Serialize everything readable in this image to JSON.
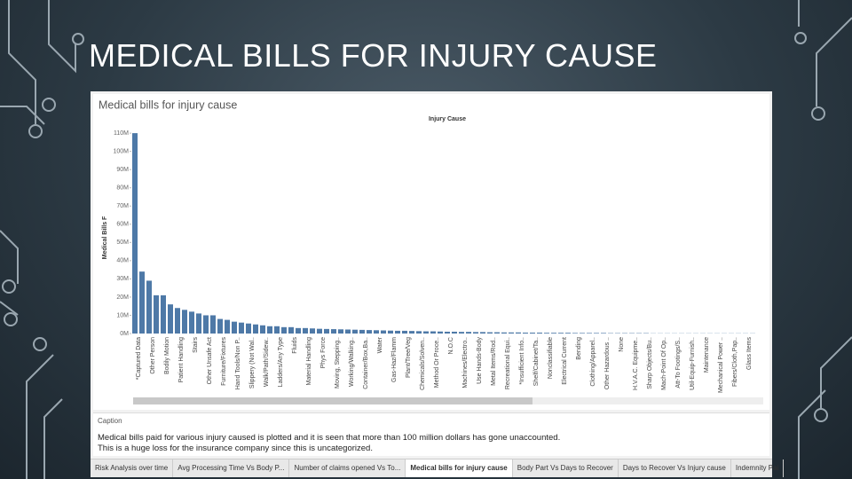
{
  "slide_title": "MEDICAL BILLS FOR INJURY CAUSE",
  "chart_data": {
    "type": "bar",
    "title": "Medical bills for injury cause",
    "header": "Injury Cause",
    "y_label": "Medical Bills F",
    "color": "#4e79a7",
    "categories": [
      "*Captured Data",
      null,
      "Other Person",
      null,
      "Bodily Motion",
      null,
      "Patient Handling",
      null,
      "Stairs",
      null,
      "Other Unsafe Act",
      null,
      "Furniture/Fixtures",
      null,
      "Hand Tools/Non P..",
      null,
      "Slippery (Not Wal..",
      null,
      "Walk/Path/Sidew..",
      null,
      "Ladders/Any Type",
      null,
      "Fluids",
      null,
      "Material Handling",
      null,
      "Phys Force",
      null,
      "Moving, Stepping..",
      null,
      "Working/Walking..",
      null,
      "Container/Box,Ba..",
      null,
      "Water",
      null,
      "Gas-Haz/Flamm",
      null,
      "Plant/Tree/Veg",
      null,
      "Chemicals/Solven..",
      null,
      "Method Or Proce..",
      null,
      "N.O.C",
      null,
      "Machines/Electro..",
      null,
      "Use Hands-Body",
      null,
      "Metal Items/Rod..",
      null,
      "Recreational Equi..",
      null,
      "*Insufficient Info..",
      null,
      "Shelf/Cabinet/Ta..",
      null,
      "Nonclassifiable",
      null,
      "Electrical Current",
      null,
      "Bending",
      null,
      "Clothing/Apparel..",
      null,
      "Other Hazardous ..",
      null,
      "None",
      null,
      "H.V.A.C. Equipme..",
      null,
      "Sharp Objects/Bu..",
      null,
      "Mach-Point Of Op..",
      null,
      "Att-To Footings/S..",
      null,
      "Util-Equip-Furnish..",
      null,
      "Maintenance",
      null,
      "Mechanical Power ..",
      null,
      "Fibers/Cloth,Pap..",
      null,
      "Glass Items",
      null
    ],
    "values": [
      110,
      34,
      29,
      21,
      21,
      16,
      14,
      13,
      12,
      11,
      10,
      10,
      8,
      7.5,
      6.5,
      6,
      5.5,
      5,
      4.5,
      4,
      4,
      3.5,
      3.5,
      3,
      3,
      2.8,
      2.6,
      2.5,
      2.4,
      2.3,
      2.2,
      2.1,
      2,
      1.9,
      1.8,
      1.7,
      1.6,
      1.5,
      1.5,
      1.4,
      1.3,
      1.2,
      1.2,
      1.1,
      1,
      1,
      0.9,
      0.9,
      0.8,
      0.8,
      0.7,
      0.7,
      0.6,
      0.6,
      0.6,
      0.5,
      0.5,
      0.5,
      0.4,
      0.4,
      0.4,
      0.4,
      0.3,
      0.3,
      0.3,
      0.3,
      0.3,
      0.2,
      0.2,
      0.2,
      0.2,
      0.2,
      0.2,
      0.1,
      0.1,
      0.1,
      0.1,
      0.1,
      0.1,
      0.1,
      0.1,
      0.1,
      0.1,
      0.1,
      0.1,
      0.1,
      0.1,
      0.1
    ],
    "ylim": [
      0,
      112
    ],
    "yticks": [
      {
        "value": 0,
        "label": "0M"
      },
      {
        "value": 10,
        "label": "10M"
      },
      {
        "value": 20,
        "label": "20M"
      },
      {
        "value": 30,
        "label": "30M"
      },
      {
        "value": 40,
        "label": "40M"
      },
      {
        "value": 50,
        "label": "50M"
      },
      {
        "value": 60,
        "label": "60M"
      },
      {
        "value": 70,
        "label": "70M"
      },
      {
        "value": 80,
        "label": "80M"
      },
      {
        "value": 90,
        "label": "90M"
      },
      {
        "value": 100,
        "label": "100M"
      },
      {
        "value": 110,
        "label": "110M"
      }
    ],
    "grid": false
  },
  "caption": {
    "label": "Caption",
    "lines": [
      "Medical bills paid for various injury caused is plotted and it is seen that more than 100 million dollars has gone unaccounted.",
      "This is a huge loss for the insurance company since this is uncategorized."
    ]
  },
  "tabs": {
    "items": [
      "Risk Analysis over time",
      "Avg Processing Time Vs Body P...",
      "Number of claims opened Vs To...",
      "Medical bills for injury cause",
      "Body Part Vs Days to Recover",
      "Days to Recover Vs Injury cause",
      "Indemnity Pai"
    ],
    "active": 3
  }
}
